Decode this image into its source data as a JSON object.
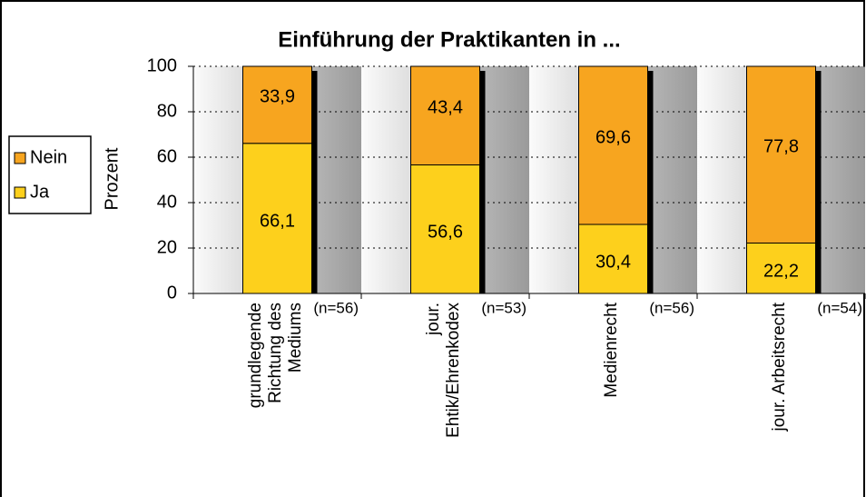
{
  "chart_data": {
    "type": "stacked_bar",
    "title": "Einführung der Praktikanten in ...",
    "y_label": "Prozent",
    "categories": [
      "grundlegende\nRichtung des\nMediums",
      "jour.\nEhtik/Ehrenkodex",
      "Medienrecht",
      "jour. Arbeitsrecht"
    ],
    "sample_sizes": [
      "(n=56)",
      "(n=53)",
      "(n=56)",
      "(n=54)"
    ],
    "series": [
      {
        "name": "Ja",
        "color": "#fdd01c",
        "values": [
          66.1,
          56.6,
          30.4,
          22.2
        ],
        "value_labels": [
          "66,1",
          "56,6",
          "30,4",
          "22,2"
        ]
      },
      {
        "name": "Nein",
        "color": "#f7a51f",
        "values": [
          33.9,
          43.4,
          69.6,
          77.8
        ],
        "value_labels": [
          "33,9",
          "43,4",
          "69,6",
          "77,8"
        ]
      }
    ],
    "ylim": [
      0,
      100
    ],
    "yticks": [
      0,
      20,
      40,
      60,
      80,
      100
    ],
    "grid": true
  }
}
